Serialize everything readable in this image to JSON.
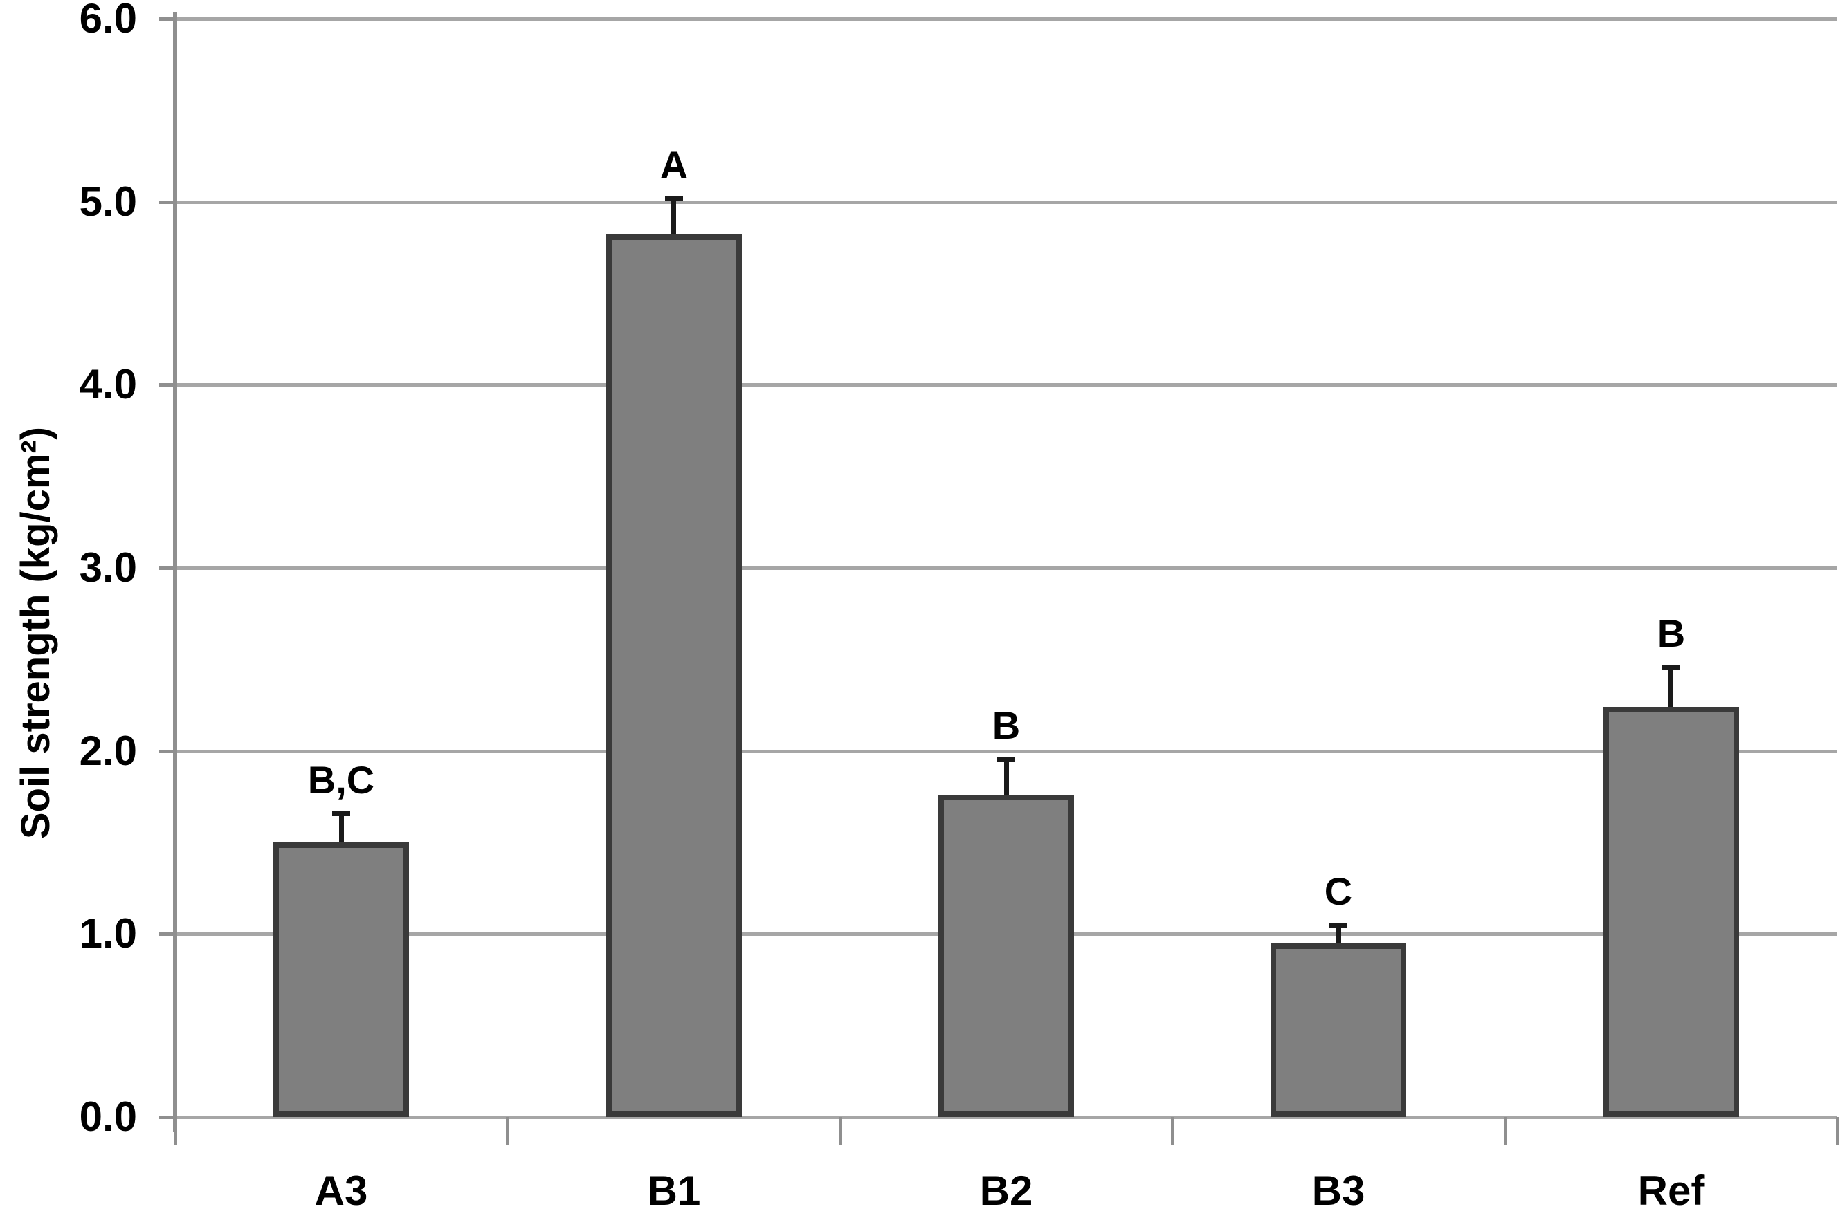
{
  "chart_data": {
    "type": "bar",
    "title": "",
    "xlabel": "",
    "ylabel": "Soil strength (kg/cm²)",
    "categories": [
      "A3",
      "B1",
      "B2",
      "B3",
      "Ref"
    ],
    "values": [
      1.5,
      4.82,
      1.76,
      0.95,
      2.24
    ],
    "errors_plus": [
      0.17,
      0.21,
      0.21,
      0.11,
      0.23
    ],
    "significance_labels": [
      "B,C",
      "A",
      "B",
      "C",
      "B"
    ],
    "ylim": [
      0.0,
      6.0
    ],
    "ytick_step": 1.0,
    "ytick_labels": [
      "0.0",
      "1.0",
      "2.0",
      "3.0",
      "4.0",
      "5.0",
      "6.0"
    ],
    "grid": true,
    "legend": "none",
    "colors": {
      "bar_fill": "#7f7f7f",
      "bar_border": "#3a3a3a",
      "error_bar": "#1a1a1a",
      "gridline": "#a6a6a6",
      "axis": "#8f8f8f",
      "text": "#000000",
      "background": "#ffffff"
    }
  }
}
